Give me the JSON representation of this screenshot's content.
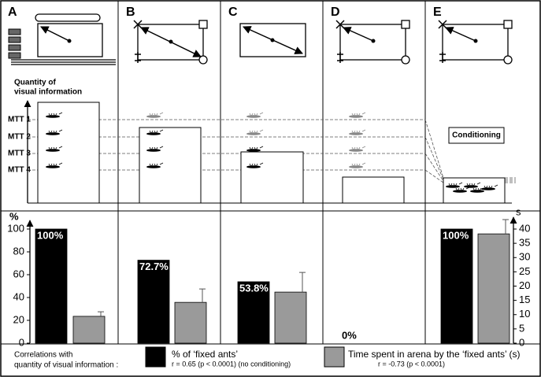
{
  "chart_data": {
    "type": "bar",
    "categories": [
      "A",
      "B",
      "C",
      "D",
      "E"
    ],
    "ylabel": "%",
    "y2label": "s",
    "ylim": [
      0,
      100
    ],
    "yticks": [
      0,
      20,
      40,
      60,
      80,
      100
    ],
    "y2lim": [
      0,
      40
    ],
    "y2ticks": [
      0,
      5,
      10,
      15,
      20,
      25,
      30,
      35,
      40
    ],
    "series": [
      {
        "name": "% of ‘fixed ants’",
        "stat": "r = 0.65 (p < 0.0001) (no conditioning)",
        "color": "#000000",
        "values": [
          100,
          72.7,
          53.8,
          0,
          100
        ],
        "value_labels": [
          "100%",
          "72.7%",
          "53.8%",
          "0%",
          "100%"
        ]
      },
      {
        "name": "Time spent in arena by the ‘fixed ants’ (s)",
        "stat": "r = -0.73 (p < 0.0001)",
        "color": "#9a9a9a",
        "axis": "y2",
        "values": [
          9.4,
          14.3,
          17.9,
          null,
          38.3
        ],
        "errors": [
          1.6,
          4.7,
          6.9,
          null,
          5
        ]
      }
    ],
    "legend_title": [
      "Correlations with",
      "quantity of visual information :"
    ]
  },
  "visual_panel": {
    "axis_label": [
      "Quantity of",
      "visual information"
    ],
    "levels": [
      "MTT 1",
      "MTT 2",
      "MTT 3",
      "MTT 4"
    ],
    "note": "Conditioning"
  }
}
